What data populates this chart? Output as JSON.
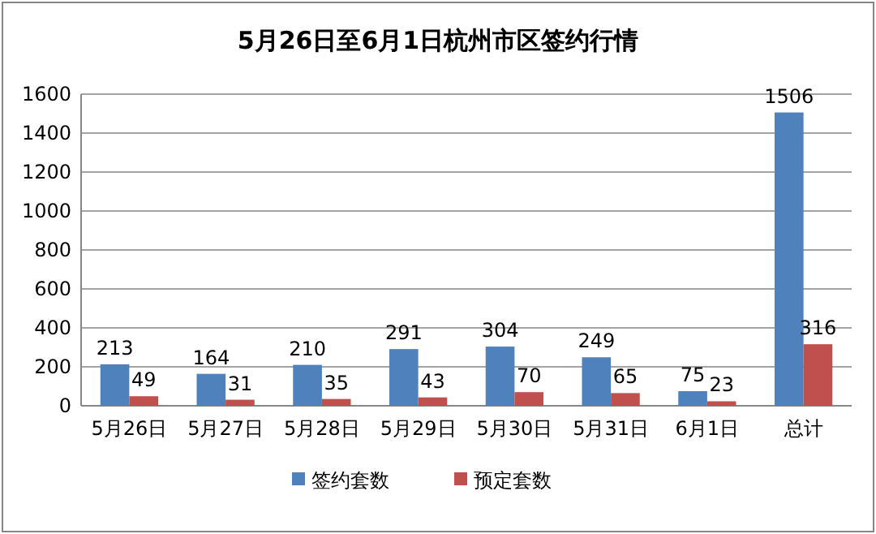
{
  "chart_data": {
    "type": "bar",
    "title": "5月26日至6月1日杭州市区签约行情",
    "categories": [
      "5月26日",
      "5月27日",
      "5月28日",
      "5月29日",
      "5月30日",
      "5月31日",
      "6月1日",
      "总计"
    ],
    "series": [
      {
        "name": "签约套数",
        "color": "#4f81bd",
        "values": [
          213,
          164,
          210,
          291,
          304,
          249,
          75,
          1506
        ]
      },
      {
        "name": "预定套数",
        "color": "#c0504d",
        "values": [
          49,
          31,
          35,
          43,
          70,
          65,
          23,
          316
        ]
      }
    ],
    "ylim": [
      0,
      1600
    ],
    "yticks": [
      0,
      200,
      400,
      600,
      800,
      1000,
      1200,
      1400,
      1600
    ],
    "grid": "y",
    "legend": "bottom",
    "data_labels": true
  }
}
